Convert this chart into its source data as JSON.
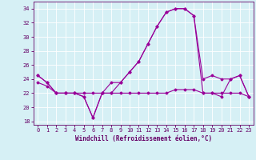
{
  "title": "",
  "xlabel": "Windchill (Refroidissement éolien,°C)",
  "background_color": "#d6f0f5",
  "grid_color": "#b8dde8",
  "line_color": "#990099",
  "x_hours": [
    0,
    1,
    2,
    3,
    4,
    5,
    6,
    7,
    8,
    9,
    10,
    11,
    12,
    13,
    14,
    15,
    16,
    17,
    18,
    19,
    20,
    21,
    22,
    23
  ],
  "series1": [
    24.5,
    23.5,
    22.0,
    22.0,
    22.0,
    21.5,
    18.5,
    22.0,
    22.0,
    23.5,
    25.0,
    26.5,
    29.0,
    31.5,
    33.5,
    34.0,
    34.0,
    33.0,
    22.0,
    22.0,
    21.5,
    24.0,
    24.5,
    21.5
  ],
  "series2": [
    23.5,
    23.0,
    22.0,
    22.0,
    22.0,
    22.0,
    22.0,
    22.0,
    22.0,
    22.0,
    22.0,
    22.0,
    22.0,
    22.0,
    22.0,
    22.5,
    22.5,
    22.5,
    22.0,
    22.0,
    22.0,
    22.0,
    22.0,
    21.5
  ],
  "series3": [
    24.5,
    23.5,
    22.0,
    22.0,
    22.0,
    21.5,
    18.5,
    22.0,
    23.5,
    23.5,
    25.0,
    26.5,
    29.0,
    31.5,
    33.5,
    34.0,
    34.0,
    33.0,
    24.0,
    24.5,
    24.0,
    24.0,
    24.5,
    21.5
  ],
  "ylim": [
    17.5,
    35.0
  ],
  "yticks": [
    18,
    20,
    22,
    24,
    26,
    28,
    30,
    32,
    34
  ],
  "xtick_labels": [
    "0",
    "1",
    "2",
    "3",
    "4",
    "5",
    "6",
    "7",
    "8",
    "9",
    "10",
    "11",
    "12",
    "13",
    "14",
    "15",
    "16",
    "17",
    "18",
    "19",
    "20",
    "21",
    "22",
    "23"
  ],
  "tick_color": "#660066",
  "label_fontsize": 5.5,
  "tick_fontsize": 5.0,
  "marker": "D",
  "marker_size": 1.5,
  "linewidth": 0.8
}
